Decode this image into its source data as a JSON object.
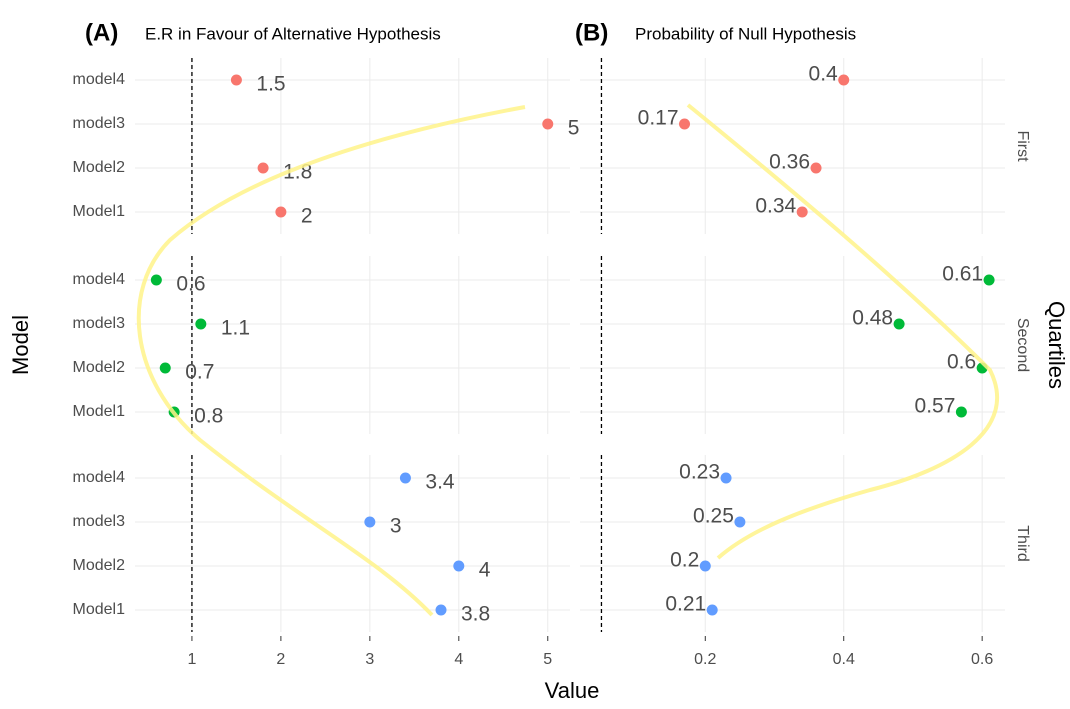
{
  "chart_data": [
    {
      "type": "dot",
      "tag": "(A)",
      "title": "E.R in Favour of Alternative Hypothesis",
      "xlabel": "Value",
      "ylabel": "Model",
      "facet_label": "Quartiles",
      "categories": [
        "Model1",
        "Model2",
        "model3",
        "model4"
      ],
      "xlim": [
        0.36,
        5.25
      ],
      "xticks": [
        1,
        2,
        3,
        4,
        5
      ],
      "ref_line": 1,
      "grid": true,
      "series": [
        {
          "name": "First",
          "color": "#f8766d",
          "values": [
            2,
            1.8,
            5,
            1.5
          ]
        },
        {
          "name": "Second",
          "color": "#00ba38",
          "values": [
            0.8,
            0.7,
            1.1,
            0.6
          ]
        },
        {
          "name": "Third",
          "color": "#619cff",
          "values": [
            3.8,
            4,
            3,
            3.4
          ]
        }
      ]
    },
    {
      "type": "dot",
      "tag": "(B)",
      "title": "Probability of Null Hypothesis",
      "categories": [
        "Model1",
        "Model2",
        "model3",
        "model4"
      ],
      "xlim": [
        0.019,
        0.633
      ],
      "xticks": [
        0.2,
        0.4,
        0.6
      ],
      "ref_line": 0.05,
      "grid": true,
      "series": [
        {
          "name": "First",
          "color": "#f8766d",
          "values": [
            0.34,
            0.36,
            0.17,
            0.4
          ]
        },
        {
          "name": "Second",
          "color": "#00ba38",
          "values": [
            0.57,
            0.6,
            0.48,
            0.61
          ]
        },
        {
          "name": "Third",
          "color": "#619cff",
          "values": [
            0.21,
            0.2,
            0.25,
            0.23
          ]
        }
      ]
    }
  ]
}
